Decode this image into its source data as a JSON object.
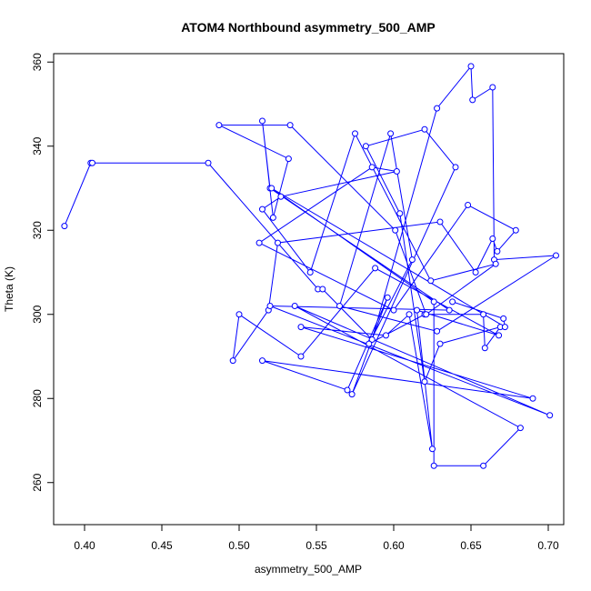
{
  "chart_data": {
    "type": "line",
    "title": "ATOM4 Northbound asymmetry_500_AMP",
    "xlabel": "asymmetry_500_AMP",
    "ylabel": "Theta (K)",
    "xlim": [
      0.38,
      0.71
    ],
    "ylim": [
      250,
      362
    ],
    "xticks": [
      0.4,
      0.45,
      0.5,
      0.55,
      0.6,
      0.65,
      0.7
    ],
    "xtick_labels": [
      "0.40",
      "0.45",
      "0.50",
      "0.55",
      "0.60",
      "0.65",
      "0.70"
    ],
    "yticks": [
      260,
      280,
      300,
      320,
      340,
      360
    ],
    "ytick_labels": [
      "260",
      "280",
      "300",
      "320",
      "340",
      "360"
    ],
    "grid": false,
    "legend": "none",
    "marker": "open-circle",
    "color": "#0000ff",
    "series": [
      {
        "x": [
          0.387,
          0.404,
          0.405,
          0.48,
          0.551,
          0.554,
          0.586,
          0.628,
          0.65,
          0.651,
          0.664,
          0.665,
          0.705,
          0.628,
          0.565,
          0.598,
          0.612,
          0.584,
          0.62,
          0.658,
          0.659,
          0.669,
          0.63,
          0.62,
          0.604,
          0.582,
          0.62,
          0.64,
          0.573,
          0.596,
          0.57,
          0.515,
          0.69,
          0.54,
          0.595,
          0.61,
          0.625,
          0.615,
          0.668,
          0.588,
          0.54,
          0.5,
          0.496,
          0.519,
          0.525,
          0.63,
          0.653,
          0.664,
          0.667,
          0.679,
          0.648,
          0.6,
          0.513,
          0.586,
          0.602,
          0.527,
          0.515,
          0.546,
          0.575,
          0.624,
          0.666,
          0.621,
          0.601,
          0.533,
          0.487,
          0.532,
          0.522,
          0.515,
          0.52,
          0.636,
          0.52,
          0.701,
          0.536,
          0.682,
          0.658,
          0.626,
          0.626,
          0.521,
          0.672,
          0.671,
          0.638
        ],
        "y": [
          321,
          336,
          336,
          336,
          306,
          306,
          294,
          349,
          359,
          351,
          354,
          313,
          314,
          296,
          302,
          343,
          313,
          293,
          300,
          300,
          292,
          297,
          293,
          284,
          324,
          340,
          344,
          335,
          281,
          304,
          282,
          289,
          280,
          297,
          295,
          300,
          268,
          301,
          295,
          311,
          290,
          300,
          289,
          301,
          317,
          322,
          310,
          318,
          315,
          320,
          326,
          301,
          317,
          335,
          334,
          328,
          325,
          310,
          343,
          308,
          312,
          300,
          320,
          345,
          345,
          337,
          323,
          346,
          330,
          301,
          302,
          276,
          302,
          273,
          264,
          264,
          303,
          330,
          297,
          299,
          303
        ]
      }
    ]
  }
}
